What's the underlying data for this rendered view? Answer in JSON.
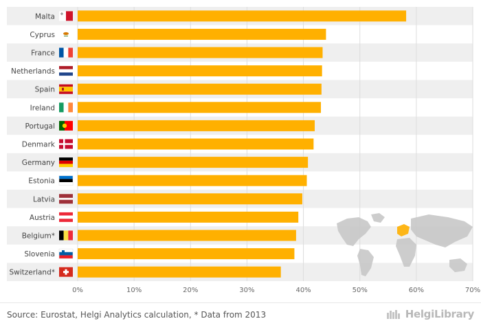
{
  "chart_data": {
    "type": "bar",
    "orientation": "horizontal",
    "categories": [
      "Malta",
      "Cyprus",
      "France",
      "Netherlands",
      "Spain",
      "Ireland",
      "Portugal",
      "Denmark",
      "Germany",
      "Estonia",
      "Latvia",
      "Austria",
      "Belgium*",
      "Slovenia",
      "Switzerland*"
    ],
    "values": [
      58.2,
      44.0,
      43.4,
      43.3,
      43.2,
      43.1,
      42.0,
      41.8,
      40.8,
      40.6,
      39.8,
      39.1,
      38.7,
      38.4,
      36.0
    ],
    "xlim": [
      0,
      70
    ],
    "x_ticks": [
      "0%",
      "10%",
      "20%",
      "30%",
      "40%",
      "50%",
      "60%",
      "70%"
    ],
    "title": "",
    "xlabel": "",
    "ylabel": "",
    "grid": true,
    "bar_color": "#ffb000",
    "row_band_color": "#efefef",
    "flags": [
      "flag-malta",
      "flag-cyprus",
      "flag-france",
      "flag-netherlands",
      "flag-spain",
      "flag-ireland",
      "flag-portugal",
      "flag-denmark",
      "flag-germany",
      "flag-estonia",
      "flag-latvia",
      "flag-austria",
      "flag-belgium",
      "flag-slovenia",
      "flag-switzerland"
    ]
  },
  "footer": {
    "source": "Source: Eurostat, Helgi Analytics calculation, * Data from 2013",
    "brand": "HelgiLibrary"
  },
  "world_map_icon": "world-map-icon",
  "highlight_color": "#ffb000"
}
